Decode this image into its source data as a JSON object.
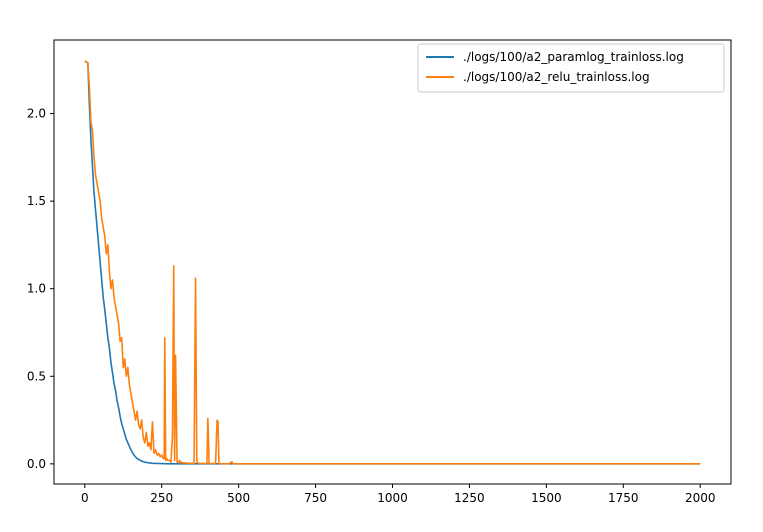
{
  "chart_data": {
    "type": "line",
    "title": "",
    "xlabel": "",
    "ylabel": "",
    "xlim": [
      -100,
      2100
    ],
    "ylim": [
      -0.115,
      2.42
    ],
    "x_ticks": [
      0,
      250,
      500,
      750,
      1000,
      1250,
      1500,
      1750,
      2000
    ],
    "y_ticks": [
      0.0,
      0.5,
      1.0,
      1.5,
      2.0
    ],
    "x_tick_labels": [
      "0",
      "250",
      "500",
      "750",
      "1000",
      "1250",
      "1500",
      "1750",
      "2000"
    ],
    "y_tick_labels": [
      "0.0",
      "0.5",
      "1.0",
      "1.5",
      "2.0"
    ],
    "legend_position": "top-right",
    "grid": false,
    "series": [
      {
        "name": "./logs/100/a2_paramlog_trainloss.log",
        "color": "#1f77b4",
        "x": [
          0,
          10,
          15,
          20,
          25,
          30,
          35,
          40,
          45,
          50,
          55,
          60,
          65,
          70,
          75,
          80,
          85,
          90,
          95,
          100,
          105,
          110,
          115,
          120,
          125,
          130,
          135,
          140,
          145,
          150,
          160,
          170,
          180,
          190,
          200,
          210,
          220,
          240,
          260,
          280,
          300,
          2000
        ],
        "y": [
          2.3,
          2.29,
          2.05,
          1.85,
          1.7,
          1.55,
          1.45,
          1.35,
          1.25,
          1.15,
          1.05,
          0.95,
          0.88,
          0.8,
          0.72,
          0.66,
          0.58,
          0.52,
          0.46,
          0.42,
          0.36,
          0.32,
          0.27,
          0.23,
          0.2,
          0.17,
          0.14,
          0.12,
          0.1,
          0.08,
          0.05,
          0.03,
          0.02,
          0.012,
          0.008,
          0.005,
          0.003,
          0.002,
          0.001,
          0.0005,
          0.0,
          0.0
        ]
      },
      {
        "name": "./logs/100/a2_relu_trainloss.log",
        "color": "#ff7f0e",
        "x": [
          0,
          10,
          15,
          20,
          25,
          30,
          35,
          40,
          45,
          50,
          55,
          60,
          65,
          70,
          75,
          80,
          85,
          90,
          95,
          100,
          105,
          110,
          115,
          120,
          125,
          130,
          135,
          140,
          145,
          150,
          155,
          160,
          165,
          170,
          175,
          180,
          185,
          190,
          195,
          200,
          205,
          210,
          215,
          220,
          225,
          230,
          235,
          240,
          245,
          250,
          255,
          258,
          260,
          263,
          266,
          270,
          275,
          280,
          285,
          289,
          292,
          295,
          300,
          305,
          308,
          310,
          313,
          318,
          325,
          340,
          355,
          360,
          364,
          370,
          385,
          397,
          400,
          404,
          410,
          425,
          430,
          433,
          436,
          445,
          470,
          478,
          482,
          500,
          2000
        ],
        "y": [
          2.3,
          2.29,
          2.15,
          1.95,
          1.9,
          1.75,
          1.65,
          1.6,
          1.55,
          1.5,
          1.4,
          1.35,
          1.3,
          1.2,
          1.25,
          1.1,
          1.0,
          1.05,
          0.95,
          0.9,
          0.85,
          0.8,
          0.7,
          0.72,
          0.55,
          0.6,
          0.5,
          0.55,
          0.45,
          0.4,
          0.35,
          0.3,
          0.25,
          0.3,
          0.22,
          0.2,
          0.25,
          0.15,
          0.12,
          0.18,
          0.1,
          0.12,
          0.08,
          0.24,
          0.06,
          0.08,
          0.05,
          0.06,
          0.04,
          0.05,
          0.03,
          0.03,
          0.72,
          0.02,
          0.03,
          0.02,
          0.02,
          0.01,
          0.16,
          1.13,
          0.02,
          0.62,
          0.01,
          0.01,
          0.02,
          0.005,
          0.01,
          0.005,
          0.005,
          0.003,
          0.003,
          1.06,
          0.01,
          0.003,
          0.002,
          0.002,
          0.26,
          0.002,
          0.002,
          0.002,
          0.25,
          0.24,
          0.002,
          0.001,
          0.001,
          0.012,
          0.001,
          0.0,
          0.0
        ]
      }
    ]
  }
}
